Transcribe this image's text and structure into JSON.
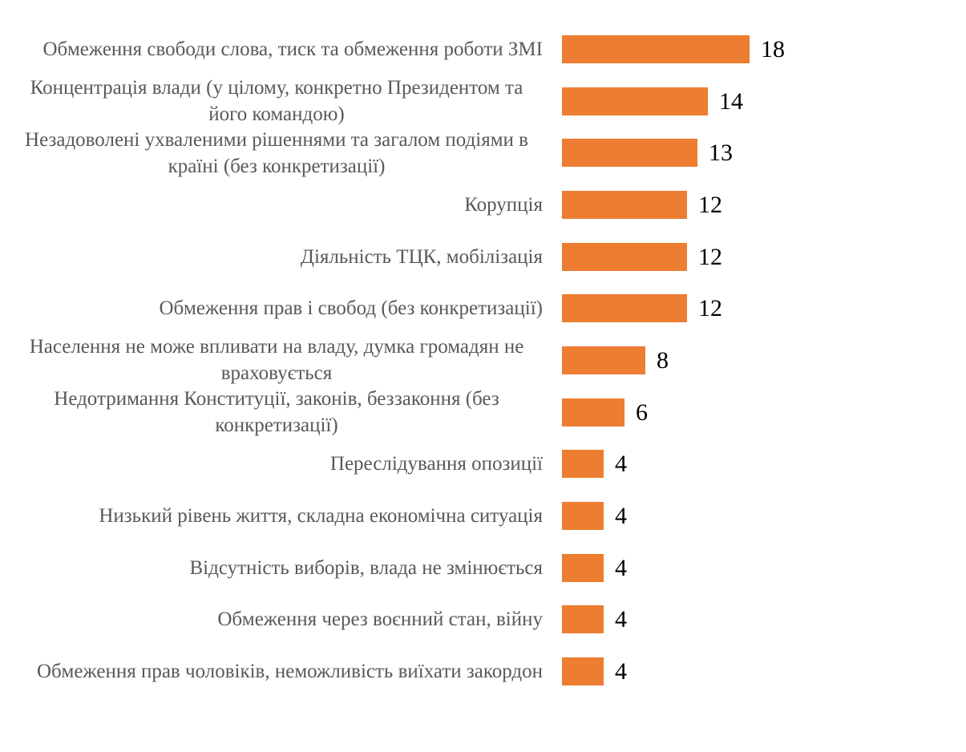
{
  "chart_data": {
    "type": "bar",
    "orientation": "horizontal",
    "title": "",
    "xlabel": "",
    "ylabel": "",
    "xlim": [
      0,
      18
    ],
    "grid": false,
    "legend": false,
    "axes_visible": false,
    "data_labels": true,
    "bar_color": "#ED7D31",
    "category_label_color": "#595959",
    "value_label_color": "#000000",
    "categories": [
      "Обмеження свободи слова, тиск та обмеження роботи ЗМІ",
      "Концентрація влади (у цілому, конкретно Президентом та його командою)",
      "Незадоволені ухваленими рішеннями та загалом подіями в країні (без конкретизації)",
      "Корупція",
      "Діяльність ТЦК, мобілізація",
      "Обмеження прав і свобод (без конкретизації)",
      "Населення не може впливати на владу, думка громадян не враховується",
      "Недотримання Конституції, законів, беззаконня (без конкретизації)",
      "Переслідування опозиції",
      "Низький рівень життя, складна економічна ситуація",
      "Відсутність виборів, влада не змінюється",
      "Обмеження через воєнний стан, війну",
      "Обмеження прав чоловіків, неможливість виїхати закордон"
    ],
    "values": [
      18,
      14,
      13,
      12,
      12,
      12,
      8,
      6,
      4,
      4,
      4,
      4,
      4
    ]
  }
}
